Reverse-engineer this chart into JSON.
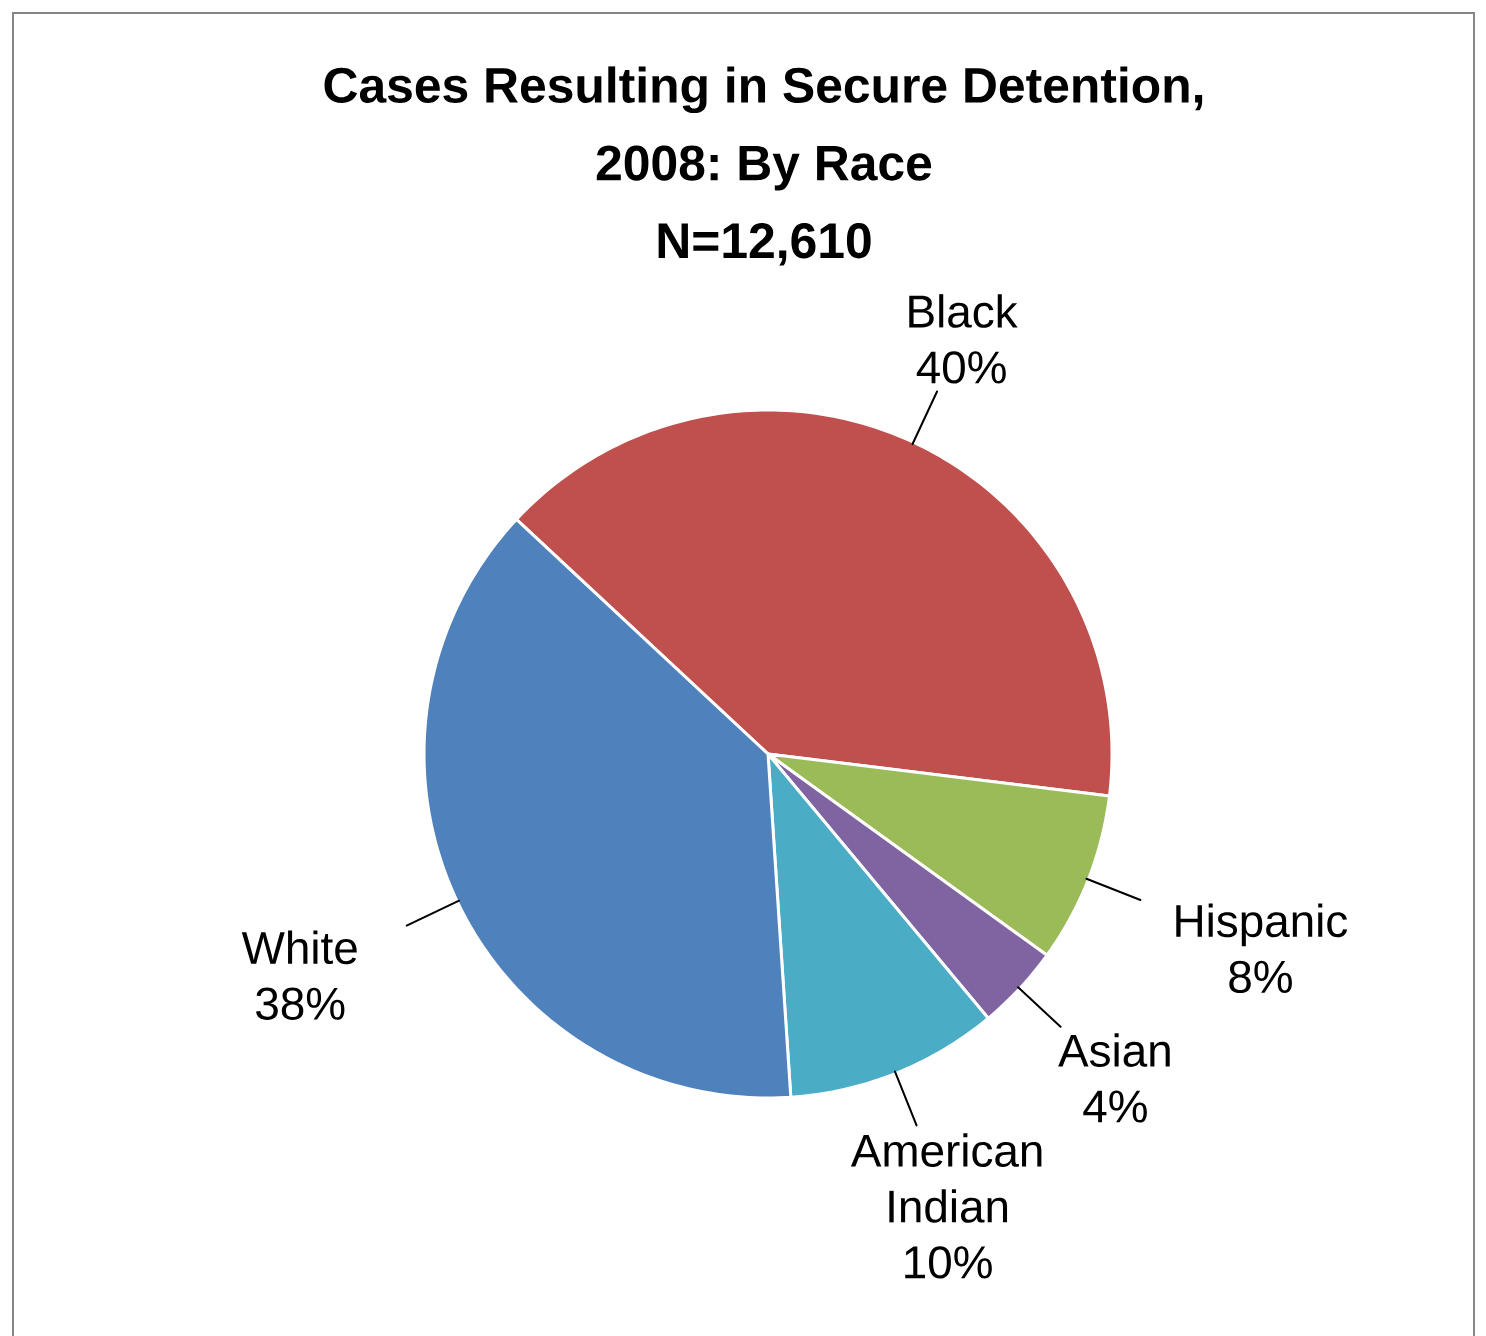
{
  "chart_data": {
    "type": "pie",
    "title": "Cases Resulting in Secure Detention, 2008: By Race",
    "subtitle": "N=12,610",
    "categories": [
      "Black",
      "Hispanic",
      "Asian",
      "American Indian",
      "White"
    ],
    "values": [
      40,
      8,
      4,
      10,
      38
    ],
    "value_labels": [
      "40%",
      "8%",
      "4%",
      "10%",
      "38%"
    ],
    "colors": [
      "#c0504d",
      "#9bbb59",
      "#8064a2",
      "#4bacc6",
      "#4f81bd"
    ]
  }
}
